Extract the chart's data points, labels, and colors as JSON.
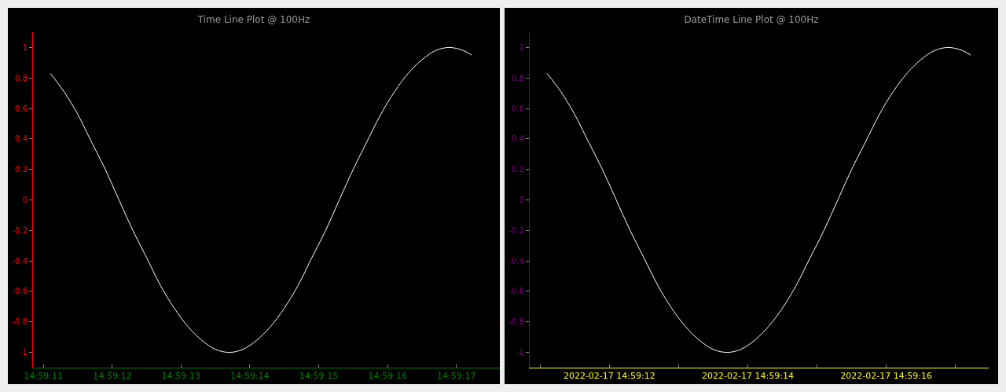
{
  "chart_data": [
    {
      "type": "line",
      "title": "Time Line Plot @ 100Hz",
      "x": [
        14.986417,
        14.986472,
        14.986528,
        14.986583,
        14.986639,
        14.986694,
        14.98675,
        14.986806,
        14.986861,
        14.986917,
        14.986972,
        14.987028,
        14.987083,
        14.987139,
        14.987194,
        14.98725,
        14.987306,
        14.987361,
        14.987417,
        14.987472,
        14.987528,
        14.987583,
        14.987639,
        14.987694,
        14.98775,
        14.987806,
        14.987861,
        14.987917,
        14.987972,
        14.988028,
        14.988083,
        14.988117
      ],
      "series": [
        {
          "color": "#ffffff",
          "values": [
            0.83,
            0.71,
            0.56,
            0.38,
            0.2,
            0,
            -0.2,
            -0.38,
            -0.56,
            -0.71,
            -0.83,
            -0.92,
            -0.98,
            -1,
            -0.98,
            -0.92,
            -0.83,
            -0.71,
            -0.56,
            -0.38,
            -0.2,
            0,
            0.2,
            0.38,
            0.56,
            0.71,
            0.83,
            0.92,
            0.98,
            1,
            0.98,
            0.95
          ]
        }
      ],
      "xlim": [
        14.986347,
        14.988231
      ],
      "xticks": [
        {
          "value": 14.986389,
          "label": "14:59:11"
        },
        {
          "value": 14.986667,
          "label": "14:59:12"
        },
        {
          "value": 14.986944,
          "label": "14:59:13"
        },
        {
          "value": 14.987222,
          "label": "14:59:14"
        },
        {
          "value": 14.9875,
          "label": "14:59:15"
        },
        {
          "value": 14.987778,
          "label": "14:59:16"
        },
        {
          "value": 14.988056,
          "label": "14:59:17"
        }
      ],
      "ylim": [
        -1.1,
        1.1
      ],
      "yticks": [
        -1,
        -0.8,
        -0.6,
        -0.4,
        -0.2,
        0,
        0.2,
        0.4,
        0.6,
        0.8,
        1
      ],
      "grid": false
    },
    {
      "type": "line",
      "title": "DateTime Line Plot @ 100Hz",
      "x": [
        "2022-02-17T14:59:11.1",
        "2022-02-17T14:59:11.3",
        "2022-02-17T14:59:11.5",
        "2022-02-17T14:59:11.7",
        "2022-02-17T14:59:11.9",
        "2022-02-17T14:59:12.1",
        "2022-02-17T14:59:12.3",
        "2022-02-17T14:59:12.5",
        "2022-02-17T14:59:12.7",
        "2022-02-17T14:59:12.9",
        "2022-02-17T14:59:13.1",
        "2022-02-17T14:59:13.3",
        "2022-02-17T14:59:13.5",
        "2022-02-17T14:59:13.7",
        "2022-02-17T14:59:13.9",
        "2022-02-17T14:59:14.1",
        "2022-02-17T14:59:14.3",
        "2022-02-17T14:59:14.5",
        "2022-02-17T14:59:14.7",
        "2022-02-17T14:59:14.9",
        "2022-02-17T14:59:15.1",
        "2022-02-17T14:59:15.3",
        "2022-02-17T14:59:15.5",
        "2022-02-17T14:59:15.7",
        "2022-02-17T14:59:15.9",
        "2022-02-17T14:59:16.1",
        "2022-02-17T14:59:16.3",
        "2022-02-17T14:59:16.5",
        "2022-02-17T14:59:16.7",
        "2022-02-17T14:59:16.9",
        "2022-02-17T14:59:17.1",
        "2022-02-17T14:59:17.22"
      ],
      "series": [
        {
          "color": "#ffffff",
          "values": [
            0.83,
            0.71,
            0.56,
            0.38,
            0.2,
            0,
            -0.2,
            -0.38,
            -0.56,
            -0.71,
            -0.83,
            -0.92,
            -0.98,
            -1,
            -0.98,
            -0.92,
            -0.83,
            -0.71,
            -0.56,
            -0.38,
            -0.2,
            0,
            0.2,
            0.38,
            0.56,
            0.71,
            0.83,
            0.92,
            0.98,
            1,
            0.98,
            0.95
          ]
        }
      ],
      "xlim": [
        "2022-02-17T14:59:10.85",
        "2022-02-17T14:59:17.48"
      ],
      "xticks": [
        {
          "value": "2022-02-17T14:59:11",
          "label": null
        },
        {
          "value": "2022-02-17T14:59:12",
          "label": "2022-02-17 14:59:12"
        },
        {
          "value": "2022-02-17T14:59:13",
          "label": null
        },
        {
          "value": "2022-02-17T14:59:14",
          "label": "2022-02-17 14:59:14"
        },
        {
          "value": "2022-02-17T14:59:15",
          "label": null
        },
        {
          "value": "2022-02-17T14:59:16",
          "label": "2022-02-17 14:59:16"
        },
        {
          "value": "2022-02-17T14:59:17",
          "label": null
        }
      ],
      "ylim": [
        -1.1,
        1.1
      ],
      "yticks": [
        -1,
        -0.8,
        -0.6,
        -0.4,
        -0.2,
        0,
        0.2,
        0.4,
        0.6,
        0.8,
        1
      ],
      "grid": false
    }
  ]
}
